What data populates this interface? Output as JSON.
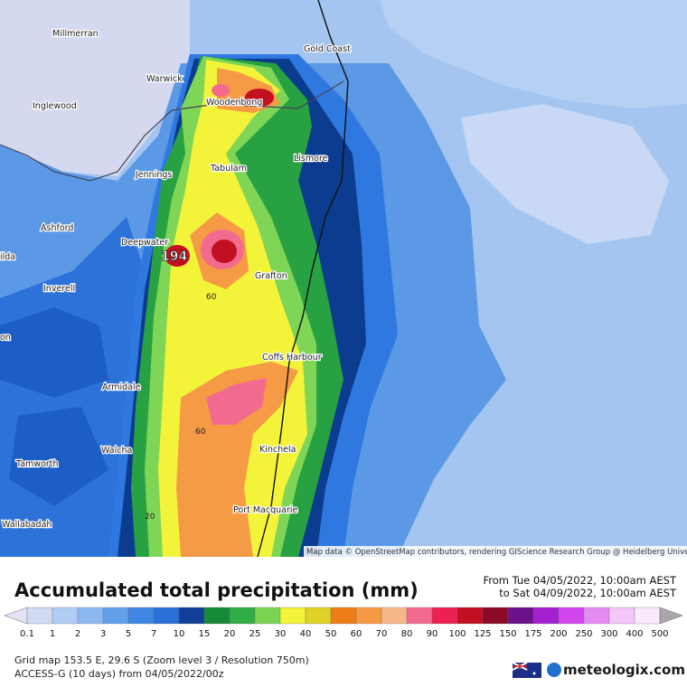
{
  "map": {
    "places": [
      "Millmerran",
      "Gold Coast",
      "Warwick",
      "Inglewood",
      "Woodenbong",
      "Lismore",
      "Jennings",
      "Tabulam",
      "Ashford",
      "Deepwater",
      "Grafton",
      "Inverell",
      "Coffs Harbour",
      "Armidale",
      "Walcha",
      "Kinchela",
      "Tamworth",
      "Port Macquarie",
      "Wallabadah",
      "ilda",
      "on"
    ],
    "contour_labels": [
      "194",
      "60",
      "60",
      "20"
    ],
    "attribution": "Map data © OpenStreetMap contributors, rendering GIScience Research Group @ Heidelberg University"
  },
  "legend": {
    "title": "Accumulated total precipitation (mm)",
    "period": [
      "From Tue 04/05/2022, 10:00am AEST",
      "to Sat 04/09/2022, 10:00am AEST"
    ],
    "labels": [
      0.1,
      1,
      2,
      3,
      5,
      7,
      10,
      15,
      20,
      25,
      30,
      40,
      50,
      60,
      70,
      80,
      90,
      100,
      125,
      150,
      175,
      200,
      250,
      300,
      400,
      500
    ],
    "under_color": "#e4e4f6",
    "bin_colors": [
      "#d3daf3",
      "#b2cdf4",
      "#8db8f2",
      "#63a0ec",
      "#3f86e4",
      "#2a6fd8",
      "#0f3f98",
      "#168a36",
      "#33ad45",
      "#7ad353",
      "#f3f33a",
      "#e0d228",
      "#ee7d1a",
      "#f59a45",
      "#f7b889",
      "#f26b8e",
      "#ee1f52",
      "#c30f22",
      "#8c0a28",
      "#6c118c",
      "#a31fd0",
      "#d246ee",
      "#e58bf2",
      "#f2c7f8",
      "#f8eafb"
    ],
    "over_color": "#a8a8a8"
  },
  "footer": {
    "info": [
      "Grid map 153.5 E, 29.6 S (Zoom level 3 / Resolution 750m)",
      "ACCESS-G (10 days) from 04/05/2022/00z"
    ],
    "brand": "meteologix.com"
  }
}
